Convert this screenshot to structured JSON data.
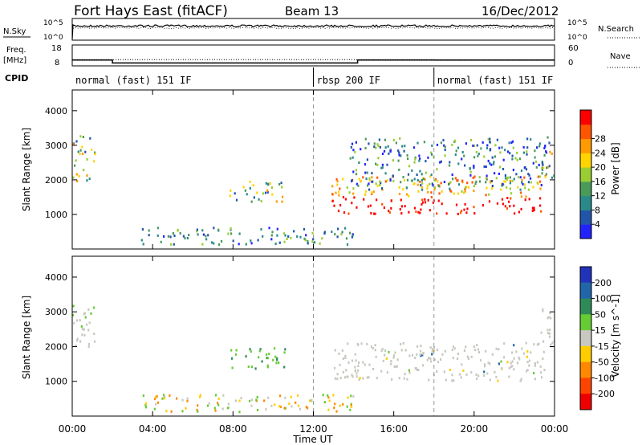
{
  "header": {
    "station": "Fort Hays East (fitACF)",
    "beam": "Beam 13",
    "date": "16/Dec/2012"
  },
  "nsky_panel": {
    "left_label": "N.Sky",
    "right_label": "N.Search",
    "left_ticks": [
      "10^5",
      "10^0"
    ],
    "right_ticks": [
      "10^5",
      "10^0"
    ]
  },
  "freq_panel": {
    "left_label_1": "Freq.",
    "left_label_2": "[MHz]",
    "right_label": "Nave",
    "left_ticks": [
      "18",
      "8"
    ],
    "right_ticks": [
      "60",
      "0"
    ],
    "freq_mhz": [
      [
        0,
        10.8
      ],
      [
        2,
        10.8
      ],
      [
        2,
        9.4
      ],
      [
        14.2,
        9.4
      ],
      [
        14.2,
        10.8
      ],
      [
        24,
        10.8
      ]
    ],
    "nave": [
      [
        0,
        18
      ],
      [
        18,
        18
      ],
      [
        18,
        16
      ],
      [
        24,
        16
      ]
    ]
  },
  "cpid": {
    "label": "CPID",
    "segments": [
      {
        "start": 0,
        "end": 12,
        "name": "normal (fast) 151 IF"
      },
      {
        "start": 12,
        "end": 18,
        "name": "rbsp 200 IF"
      },
      {
        "start": 18,
        "end": 24,
        "name": "normal (fast) 151 IF"
      }
    ]
  },
  "power_panel": {
    "ylabel": "Slant Range [km]",
    "cbar_label": "Power [dB]",
    "cbar_ticks": [
      "4",
      "8",
      "12",
      "16",
      "20",
      "24",
      "28"
    ],
    "cbar_colors": [
      "#2222ff",
      "#2255aa",
      "#2a8a8a",
      "#4a9a5a",
      "#9acd32",
      "#ffd400",
      "#ff9a00",
      "#ff5500",
      "#ff0000"
    ]
  },
  "velocity_panel": {
    "ylabel": "Slant Range [km]",
    "cbar_label": "Velocity [m s^-1]",
    "cbar_ticks": [
      "200",
      "100",
      "50",
      "15",
      "-15",
      "-50",
      "-100",
      "-200"
    ],
    "cbar_colors": [
      "#2233bb",
      "#2266aa",
      "#2e8b57",
      "#66cc33",
      "#c8c8c0",
      "#ffcc00",
      "#ff8800",
      "#ff4400",
      "#ee0000"
    ]
  },
  "x_axis": {
    "label": "Time UT",
    "ticks": [
      "00:00",
      "04:00",
      "08:00",
      "12:00",
      "16:00",
      "20:00",
      "00:00"
    ]
  },
  "chart_data": {
    "type": "heatmap",
    "x_range_hours": [
      0,
      24
    ],
    "y_range_km": [
      0,
      4600
    ],
    "y_ticks": [
      1000,
      2000,
      3000,
      4000
    ],
    "time_ticks_hours": [
      0,
      4,
      8,
      12,
      16,
      20,
      24
    ],
    "dashed_lines_hours": [
      12,
      18
    ],
    "power_features": [
      {
        "t0": 0.0,
        "t1": 1.1,
        "r0": 1900,
        "r1": 3250,
        "level": "medium"
      },
      {
        "t0": 7.8,
        "t1": 10.6,
        "r0": 1350,
        "r1": 1950,
        "level": "medium"
      },
      {
        "t0": 12.9,
        "t1": 23.5,
        "r0": 1000,
        "r1": 2100,
        "level": "high"
      },
      {
        "t0": 13.8,
        "t1": 23.6,
        "r0": 1700,
        "r1": 3200,
        "level": "low"
      },
      {
        "t0": 3.4,
        "t1": 14.0,
        "r0": 100,
        "r1": 600,
        "level": "low"
      },
      {
        "t0": 23.3,
        "t1": 24.0,
        "r0": 2000,
        "r1": 3250,
        "level": "medium"
      }
    ],
    "velocity_features": [
      {
        "t0": 0.0,
        "t1": 1.1,
        "r0": 1900,
        "r1": 3250,
        "class": "15"
      },
      {
        "t0": 7.8,
        "t1": 10.6,
        "r0": 1350,
        "r1": 1950,
        "class": "50"
      },
      {
        "t0": 12.9,
        "t1": 23.5,
        "r0": 1000,
        "r1": 2100,
        "class": "-15"
      },
      {
        "t0": 3.4,
        "t1": 14.0,
        "r0": 100,
        "r1": 600,
        "class": "-50"
      },
      {
        "t0": 23.3,
        "t1": 24.0,
        "r0": 2000,
        "r1": 3250,
        "class": "15"
      }
    ]
  }
}
